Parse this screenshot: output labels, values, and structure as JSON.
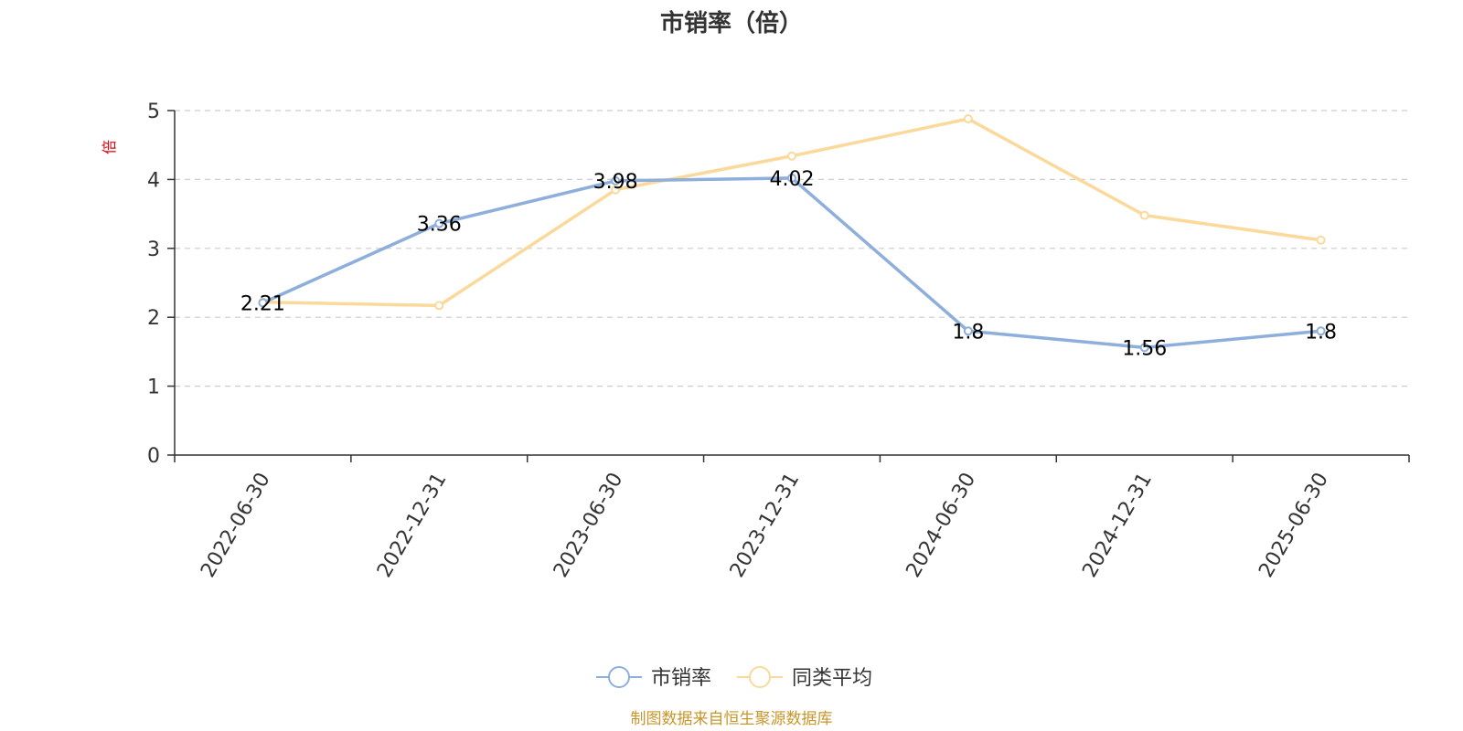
{
  "chart_data": {
    "type": "line",
    "title": "市销率（倍）",
    "ylabel": "倍",
    "categories": [
      "2022-06-30",
      "2022-12-31",
      "2023-06-30",
      "2023-12-31",
      "2024-06-30",
      "2024-12-31",
      "2025-06-30"
    ],
    "ylim": [
      0,
      5
    ],
    "yticks": [
      "0",
      "1",
      "2",
      "3",
      "4",
      "5"
    ],
    "grid": true,
    "legend_position": "bottom",
    "series": [
      {
        "name": "市销率",
        "values": [
          2.21,
          3.36,
          3.98,
          4.02,
          1.8,
          1.56,
          1.8
        ],
        "labels": [
          "2.21",
          "3.36",
          "3.98",
          "4.02",
          "1.8",
          "1.56",
          "1.8"
        ],
        "color": "#8eaedb"
      },
      {
        "name": "同类平均",
        "values": [
          2.22,
          2.17,
          3.85,
          4.34,
          4.88,
          3.48,
          3.12
        ],
        "color": "#fbd99a"
      }
    ],
    "source_note": "制图数据来自恒生聚源数据库",
    "source_color": "#c8962a",
    "unit_color": "#e0000f"
  }
}
